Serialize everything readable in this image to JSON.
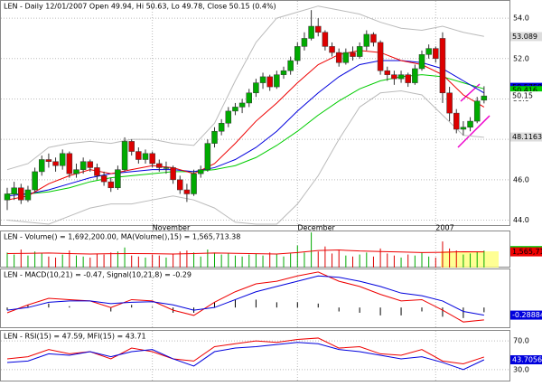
{
  "chart_data": {
    "type": "candlestick",
    "title": "LEN - Daily 12/01/2007 Open 49.94, Hi 50.63, Lo 49.78, Close 50.15 (0.4%)",
    "categories": [
      null,
      null,
      null,
      null,
      null,
      null,
      null,
      null,
      null,
      null,
      null,
      null,
      null,
      null,
      null,
      null,
      null,
      null,
      null,
      null,
      null,
      "November",
      null,
      null,
      null,
      null,
      null,
      null,
      null,
      null,
      null,
      null,
      null,
      null,
      null,
      null,
      null,
      null,
      null,
      null,
      null,
      null,
      "December",
      null,
      null,
      null,
      null,
      null,
      null,
      null,
      null,
      null,
      null,
      null,
      null,
      null,
      null,
      null,
      null,
      null,
      null,
      null,
      "2007",
      null,
      null,
      null,
      null,
      null,
      null,
      null
    ],
    "candles": [
      [
        45.0,
        45.6,
        44.5,
        45.3
      ],
      [
        45.3,
        45.9,
        45.0,
        45.6
      ],
      [
        45.6,
        45.8,
        44.8,
        45.0
      ],
      [
        45.0,
        45.7,
        44.9,
        45.5
      ],
      [
        45.5,
        46.6,
        45.4,
        46.4
      ],
      [
        46.4,
        47.2,
        46.2,
        47.0
      ],
      [
        47.0,
        47.3,
        46.6,
        46.9
      ],
      [
        46.9,
        47.1,
        46.4,
        46.7
      ],
      [
        46.7,
        47.5,
        46.5,
        47.3
      ],
      [
        47.3,
        47.4,
        46.1,
        46.3
      ],
      [
        46.3,
        46.8,
        46.1,
        46.5
      ],
      [
        46.5,
        47.1,
        46.3,
        46.9
      ],
      [
        46.9,
        47.0,
        46.4,
        46.6
      ],
      [
        46.6,
        46.8,
        46.0,
        46.2
      ],
      [
        46.2,
        46.4,
        45.7,
        45.9
      ],
      [
        45.9,
        46.1,
        45.4,
        45.6
      ],
      [
        45.6,
        46.7,
        45.5,
        46.5
      ],
      [
        46.5,
        48.1,
        46.4,
        47.9
      ],
      [
        47.9,
        48.0,
        47.2,
        47.4
      ],
      [
        47.4,
        47.6,
        46.8,
        47.0
      ],
      [
        47.0,
        47.5,
        46.8,
        47.3
      ],
      [
        47.3,
        47.4,
        46.6,
        46.8
      ],
      [
        46.8,
        47.0,
        46.4,
        46.6
      ],
      [
        46.6,
        46.9,
        46.3,
        46.6
      ],
      [
        46.6,
        46.7,
        45.8,
        46.0
      ],
      [
        46.0,
        46.2,
        45.3,
        45.5
      ],
      [
        45.5,
        45.8,
        44.9,
        45.3
      ],
      [
        45.3,
        46.5,
        45.2,
        46.3
      ],
      [
        46.3,
        46.7,
        46.1,
        46.5
      ],
      [
        46.5,
        48.0,
        46.4,
        47.8
      ],
      [
        47.8,
        48.6,
        47.6,
        48.4
      ],
      [
        48.4,
        49.0,
        48.2,
        48.8
      ],
      [
        48.8,
        49.6,
        48.6,
        49.4
      ],
      [
        49.4,
        49.8,
        49.2,
        49.6
      ],
      [
        49.6,
        50.0,
        49.3,
        49.8
      ],
      [
        49.8,
        50.5,
        49.6,
        50.3
      ],
      [
        50.3,
        51.0,
        50.1,
        50.8
      ],
      [
        50.8,
        51.3,
        50.5,
        51.1
      ],
      [
        51.1,
        51.2,
        50.4,
        50.6
      ],
      [
        50.6,
        51.4,
        50.5,
        51.2
      ],
      [
        51.2,
        51.6,
        51.0,
        51.4
      ],
      [
        51.4,
        52.1,
        51.2,
        51.9
      ],
      [
        51.9,
        52.8,
        51.7,
        52.6
      ],
      [
        52.6,
        53.3,
        52.4,
        53.0
      ],
      [
        53.0,
        54.4,
        52.9,
        53.6
      ],
      [
        53.6,
        54.0,
        53.1,
        53.3
      ],
      [
        53.3,
        53.4,
        52.4,
        52.6
      ],
      [
        52.6,
        52.8,
        52.1,
        52.3
      ],
      [
        52.3,
        52.5,
        51.6,
        51.8
      ],
      [
        51.8,
        52.5,
        51.7,
        52.3
      ],
      [
        52.3,
        52.6,
        51.9,
        52.1
      ],
      [
        52.1,
        52.8,
        52.0,
        52.6
      ],
      [
        52.6,
        53.4,
        52.4,
        53.2
      ],
      [
        53.2,
        53.3,
        52.6,
        52.8
      ],
      [
        52.8,
        52.9,
        51.2,
        51.4
      ],
      [
        51.4,
        51.6,
        50.9,
        51.2
      ],
      [
        51.2,
        51.4,
        50.7,
        51.0
      ],
      [
        51.0,
        51.4,
        50.8,
        51.2
      ],
      [
        51.2,
        51.3,
        50.6,
        50.8
      ],
      [
        50.8,
        51.7,
        50.7,
        51.5
      ],
      [
        51.5,
        52.4,
        51.4,
        52.2
      ],
      [
        52.2,
        52.7,
        52.0,
        52.5
      ],
      [
        52.5,
        52.6,
        51.8,
        52.0
      ],
      [
        53.0,
        53.3,
        49.8,
        50.3
      ],
      [
        50.3,
        50.6,
        48.9,
        49.3
      ],
      [
        49.3,
        49.5,
        48.3,
        48.5
      ],
      [
        48.5,
        48.9,
        48.2,
        48.6
      ],
      [
        48.6,
        49.1,
        48.4,
        48.9
      ],
      [
        48.9,
        50.1,
        48.8,
        49.9
      ],
      [
        49.94,
        50.63,
        49.78,
        50.15
      ]
    ],
    "up_color": "#00aa00",
    "down_color": "#dd0000",
    "ylim": [
      43.8,
      54.9
    ],
    "yticks": [
      {
        "value": 54,
        "label": "54.0"
      },
      {
        "value": 52,
        "label": "52.0"
      },
      {
        "value": 50,
        "label": "50.0"
      },
      {
        "value": 48,
        "label": "48.0"
      },
      {
        "value": 46,
        "label": "46.0"
      },
      {
        "value": 44,
        "label": "44.0"
      }
    ],
    "grid": true,
    "overlay_x": [
      0,
      3,
      6,
      9,
      12,
      15,
      18,
      21,
      24,
      27,
      30,
      33,
      36,
      39,
      42,
      45,
      48,
      51,
      54,
      57,
      60,
      63,
      66,
      69
    ],
    "overlays": [
      {
        "color": "#bbbbbb",
        "values": [
          46.5,
          46.8,
          47.6,
          47.8,
          47.9,
          47.8,
          48.0,
          48.0,
          47.8,
          47.7,
          48.8,
          50.9,
          52.8,
          54.0,
          54.3,
          54.6,
          54.4,
          54.2,
          53.8,
          53.5,
          53.4,
          53.6,
          53.3,
          53.1
        ]
      },
      {
        "color": "#bbbbbb",
        "values": [
          44.0,
          43.9,
          43.8,
          44.2,
          44.6,
          44.8,
          44.8,
          45.0,
          45.2,
          45.0,
          44.6,
          43.9,
          43.8,
          43.8,
          44.8,
          46.2,
          48.0,
          49.6,
          50.3,
          50.4,
          50.2,
          49.2,
          48.2,
          48.1
        ]
      },
      {
        "color": "#00cc00",
        "values": [
          45.3,
          45.3,
          45.4,
          45.6,
          45.9,
          46.1,
          46.2,
          46.3,
          46.4,
          46.4,
          46.5,
          46.7,
          47.1,
          47.7,
          48.4,
          49.2,
          49.9,
          50.5,
          50.9,
          51.1,
          51.2,
          51.1,
          50.8,
          50.5
        ]
      },
      {
        "color": "#0000dd",
        "values": [
          45.2,
          45.3,
          45.5,
          45.8,
          46.1,
          46.3,
          46.4,
          46.5,
          46.5,
          46.4,
          46.6,
          47.0,
          47.6,
          48.4,
          49.4,
          50.3,
          51.1,
          51.7,
          51.9,
          51.9,
          51.8,
          51.5,
          50.9,
          50.3
        ]
      },
      {
        "color": "#ee0000",
        "values": [
          45.0,
          45.2,
          45.8,
          46.2,
          46.5,
          46.3,
          46.5,
          46.7,
          46.6,
          46.3,
          46.8,
          47.8,
          48.9,
          49.8,
          50.8,
          51.7,
          52.2,
          52.4,
          52.3,
          51.9,
          51.7,
          51.2,
          50.2,
          49.6
        ]
      }
    ],
    "price_labels": [
      {
        "value": 53.089,
        "color": "#dddddd"
      },
      {
        "value": 50.5758,
        "color": "#0000dd"
      },
      {
        "value": 50.416,
        "color": "#00cc00"
      },
      {
        "value": 50.15,
        "color": "#ffffff"
      },
      {
        "value": 48.1163,
        "color": "#dddddd"
      }
    ],
    "volume": {
      "title": "LEN - Volume() = 1,692,200.00, MA(Volume(),15) = 1,565,713.38",
      "values": [
        1500000,
        1300000,
        1800000,
        1200000,
        1600000,
        1400000,
        1100000,
        1000000,
        1300000,
        1700000,
        1200000,
        1100000,
        1000000,
        1400000,
        1300000,
        1500000,
        1600000,
        2000000,
        1200000,
        1100000,
        1000000,
        1300000,
        1200000,
        1000000,
        1400000,
        1600000,
        1700000,
        1500000,
        1100000,
        1800000,
        1500000,
        1300000,
        1400000,
        1200000,
        1100000,
        1300000,
        1400000,
        1200000,
        1500000,
        1300000,
        1100000,
        1400000,
        2200000,
        1500000,
        3500000,
        1600000,
        2100000,
        1400000,
        1700000,
        1200000,
        1100000,
        1300000,
        1500000,
        1100000,
        1900000,
        1400000,
        1200000,
        1000000,
        1300000,
        1200000,
        1500000,
        1100000,
        1000000,
        2600000,
        1900000,
        1700000,
        1300000,
        1400000,
        1600000,
        1692200
      ],
      "ma": [
        1400000,
        1420000,
        1450000,
        1400000,
        1350000,
        1380000,
        1400000,
        1380000,
        1350000,
        1400000,
        1450000,
        1420000,
        1380000,
        1350000,
        1500000,
        1700000,
        1750000,
        1650000,
        1600000,
        1550000,
        1500000,
        1520000,
        1580000,
        1565713
      ],
      "ma_color": "#ee0000",
      "ylim": [
        0,
        3600000
      ],
      "labels": [
        {
          "value": 1692200,
          "label": "1,692,200",
          "color": "#00cc00"
        },
        {
          "value": 1565713,
          "label": "1,565,713",
          "color": "#ee0000"
        }
      ]
    },
    "macd": {
      "title": "LEN - MACD(10,21) = -0.47, Signal(10,21,8) = -0.29",
      "ylim": [
        -0.75,
        1.45
      ],
      "macd": [
        -0.2,
        0.1,
        0.35,
        0.3,
        0.25,
        0.0,
        0.3,
        0.25,
        -0.1,
        -0.3,
        0.2,
        0.6,
        0.9,
        1.0,
        1.2,
        1.35,
        1.0,
        0.8,
        0.5,
        0.25,
        0.3,
        -0.1,
        -0.55,
        -0.47
      ],
      "macd_color": "#ee0000",
      "signal": [
        -0.1,
        0.0,
        0.2,
        0.25,
        0.25,
        0.15,
        0.2,
        0.22,
        0.1,
        -0.1,
        0.0,
        0.3,
        0.6,
        0.8,
        1.0,
        1.2,
        1.15,
        1.0,
        0.8,
        0.55,
        0.45,
        0.25,
        -0.15,
        -0.29
      ],
      "signal_color": "#0000dd",
      "histogram": [
        -0.1,
        0.1,
        0.15,
        0.05,
        0,
        -0.15,
        0.1,
        0.03,
        -0.2,
        -0.2,
        0.2,
        0.3,
        0.3,
        0.2,
        0.2,
        0.15,
        -0.15,
        -0.2,
        -0.3,
        -0.3,
        -0.15,
        -0.35,
        -0.4,
        -0.18
      ],
      "label": -0.28884,
      "label_color": "#0000dd"
    },
    "rsi": {
      "title": "LEN - RSI(15) = 47.59, MFI(15) = 43.71",
      "ylim": [
        16,
        84
      ],
      "yticks": [
        {
          "value": 70,
          "label": "70.0"
        },
        {
          "value": 30,
          "label": "30.0"
        }
      ],
      "rsi": [
        45,
        48,
        58,
        52,
        55,
        45,
        60,
        55,
        45,
        42,
        62,
        66,
        70,
        68,
        72,
        74,
        60,
        62,
        52,
        50,
        58,
        42,
        38,
        47.59
      ],
      "rsi_color": "#ee0000",
      "mfi": [
        40,
        42,
        52,
        50,
        55,
        48,
        55,
        58,
        45,
        35,
        55,
        60,
        62,
        65,
        68,
        66,
        58,
        55,
        50,
        45,
        48,
        40,
        30,
        43.71
      ],
      "mfi_color": "#0000dd",
      "label": 43.7056,
      "label_color": "#0000dd"
    }
  }
}
